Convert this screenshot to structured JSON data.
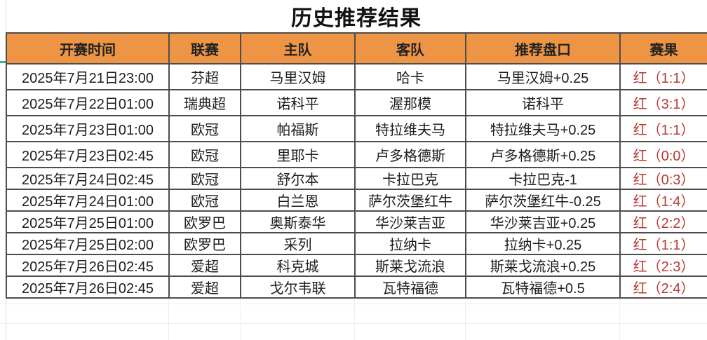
{
  "page": {
    "title": "历史推荐结果"
  },
  "table": {
    "headers": [
      "开赛时间",
      "联赛",
      "主队",
      "客队",
      "推荐盘口",
      "赛果"
    ],
    "rows": [
      [
        "2025年7月21日23:00",
        "芬超",
        "马里汉姆",
        "哈卡",
        "马里汉姆+0.25",
        "红（1:1）"
      ],
      [
        "2025年7月22日01:00",
        "瑞典超",
        "诺科平",
        "渥那模",
        "诺科平",
        "红（3:1）"
      ],
      [
        "2025年7月23日01:00",
        "欧冠",
        "帕福斯",
        "特拉维夫马",
        "特拉维夫马+0.25",
        "红（1:1）"
      ],
      [
        "2025年7月23日02:45",
        "欧冠",
        "里耶卡",
        "卢多格德斯",
        "卢多格德斯+0.25",
        "红（0:0）"
      ],
      [
        "2025年7月24日02:45",
        "欧冠",
        "舒尔本",
        "卡拉巴克",
        "卡拉巴克-1",
        "红（0:3）"
      ],
      [
        "2025年7月24日01:00",
        "欧冠",
        "白兰恩",
        "萨尔茨堡红牛",
        "萨尔茨堡红牛-0.25",
        "红（1:4）"
      ],
      [
        "2025年7月25日01:00",
        "欧罗巴",
        "奥斯泰华",
        "华沙莱吉亚",
        "华沙莱吉亚+0.25",
        "红（2:2）"
      ],
      [
        "2025年7月25日02:00",
        "欧罗巴",
        "采列",
        "拉纳卡",
        "拉纳卡+0.25",
        "红（1:1）"
      ],
      [
        "2025年7月26日02:45",
        "爱超",
        "科克城",
        "斯莱戈流浪",
        "斯莱戈流浪+0.25",
        "红（2:3）"
      ],
      [
        "2025年7月26日02:45",
        "爱超",
        "戈尔韦联",
        "瓦特福德",
        "瓦特福德+0.5",
        "红（2:4）"
      ]
    ]
  },
  "colors": {
    "header_bg": "#ee9445",
    "result_red": "#b93a31",
    "border_dark": "#4d4d4d",
    "grid_faint": "#f0edee",
    "accent_teal": "#2cb795"
  }
}
